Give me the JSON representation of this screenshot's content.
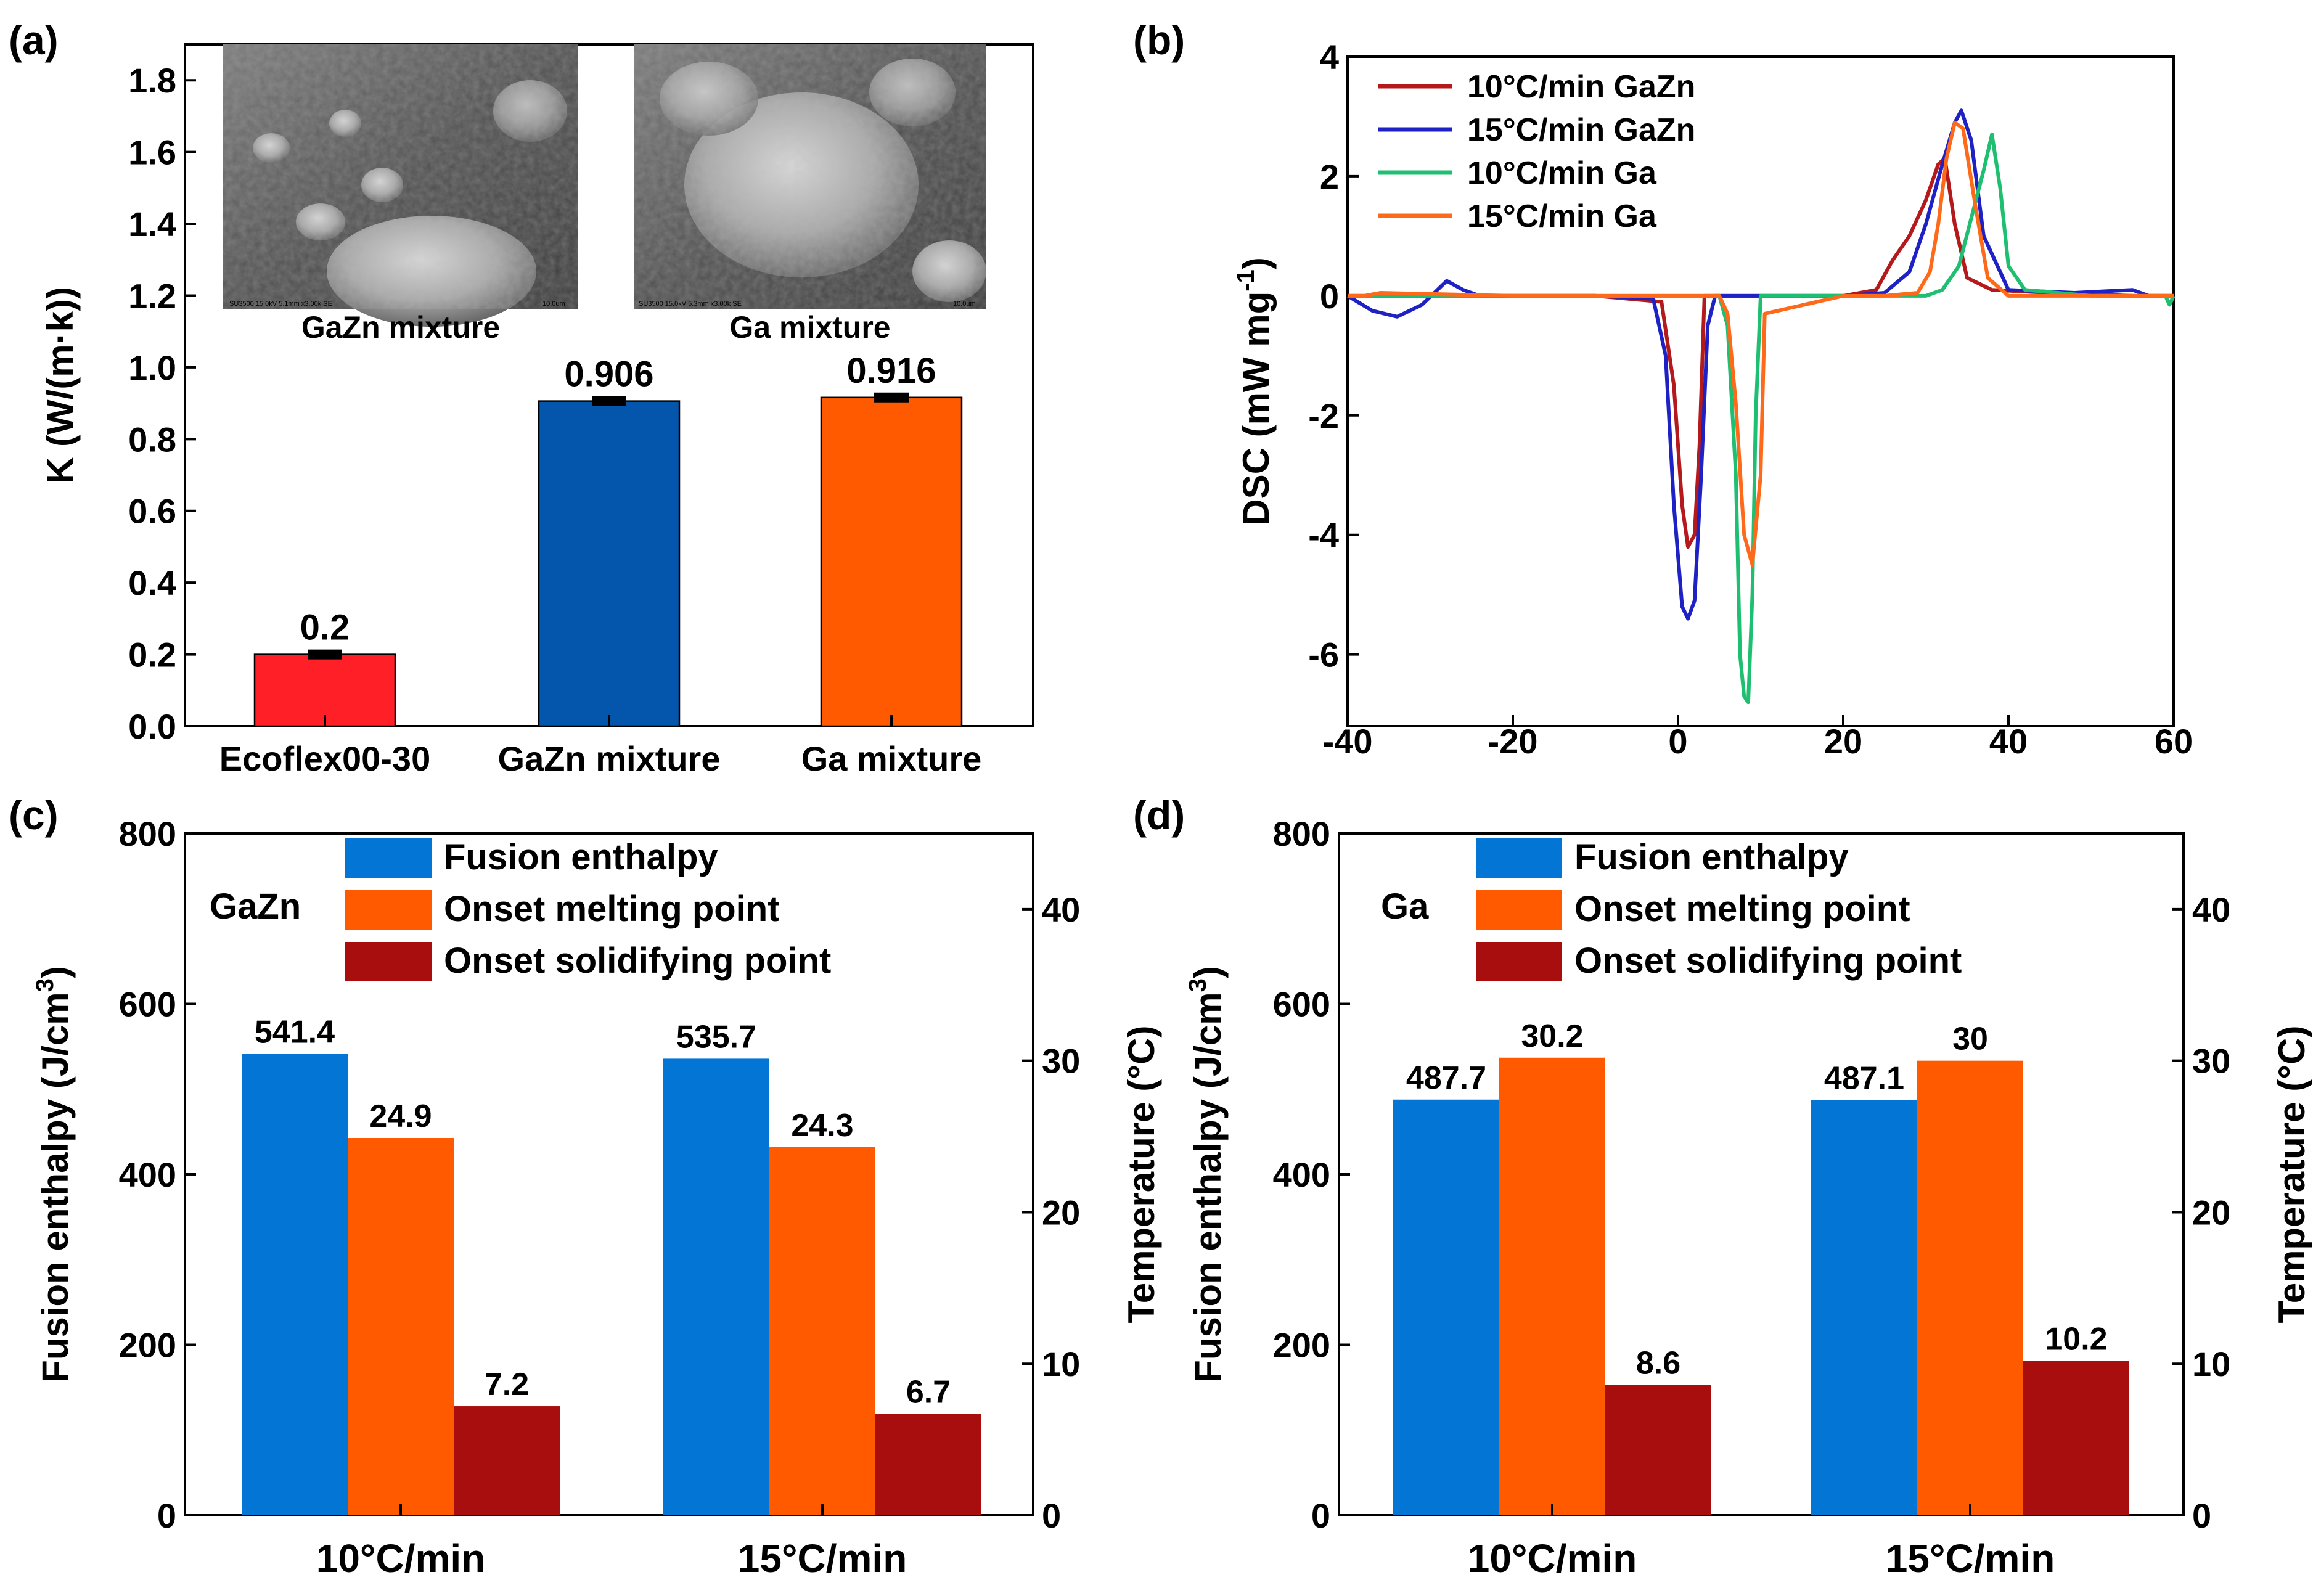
{
  "chart_data": [
    {
      "panel": "(a)",
      "type": "bar",
      "ylabel": "K (W/(m·k))",
      "ylim": [
        0,
        1.9
      ],
      "yticks": [
        "0.0",
        "0.2",
        "0.4",
        "0.6",
        "0.8",
        "1.0",
        "1.2",
        "1.4",
        "1.6",
        "1.8"
      ],
      "categories": [
        "Ecoflex00-30",
        "GaZn mixture",
        "Ga mixture"
      ],
      "values": [
        0.2,
        0.906,
        0.916
      ],
      "value_labels": [
        "0.2",
        "0.906",
        "0.916"
      ],
      "colors": [
        "#ff1f26",
        "#0456ad",
        "#ff5a00"
      ],
      "insets": [
        {
          "caption": "GaZn mixture",
          "scale": "10.0um",
          "meta": "SU3500 15.0kV 5.1mm x3.00k SE"
        },
        {
          "caption": "Ga mixture",
          "scale": "10.0um",
          "meta": "SU3500 15.0kV 5.3mm x3.00k SE"
        }
      ]
    },
    {
      "panel": "(b)",
      "type": "line",
      "ylabel": "DSC (mW mg",
      "ylabel_sup": "-1",
      "ylabel_end": ")",
      "xlim": [
        -40,
        60
      ],
      "ylim": [
        -7.2,
        4
      ],
      "xticks": [
        "-40",
        "-20",
        "0",
        "20",
        "40",
        "60"
      ],
      "yticks": [
        "-6",
        "-4",
        "-2",
        "0",
        "2",
        "4"
      ],
      "series": [
        {
          "name": "10°C/min GaZn",
          "color": "#b4191b",
          "x": [
            -40,
            -30,
            -10,
            -2,
            -0.5,
            0.5,
            1.2,
            2.0,
            2.6,
            3.2,
            5,
            10,
            20,
            24,
            26,
            28,
            30,
            31.5,
            32.3,
            33.5,
            35,
            38,
            45,
            55,
            60
          ],
          "y": [
            0,
            0,
            0,
            -0.1,
            -1.5,
            -3.5,
            -4.2,
            -4.0,
            -2.5,
            0,
            0,
            0,
            0,
            0.1,
            0.6,
            1.0,
            1.6,
            2.2,
            2.3,
            1.2,
            0.3,
            0.1,
            0.05,
            0,
            0
          ]
        },
        {
          "name": "15°C/min GaZn",
          "color": "#1e22c4",
          "x": [
            -40,
            -37,
            -34,
            -31,
            -28,
            -26,
            -24,
            -10,
            -3,
            -1.5,
            -0.5,
            0.5,
            1.2,
            2.0,
            2.8,
            3.6,
            4.5,
            10,
            20,
            25,
            28,
            30,
            32,
            33.5,
            34.3,
            35.5,
            37,
            40,
            48,
            55,
            57,
            60
          ],
          "y": [
            0,
            -0.25,
            -0.35,
            -0.15,
            0.25,
            0.1,
            0,
            0,
            -0.05,
            -1.0,
            -3.5,
            -5.2,
            -5.4,
            -5.1,
            -3.0,
            -0.5,
            0,
            0,
            0,
            0.05,
            0.4,
            1.2,
            2.2,
            2.9,
            3.1,
            2.6,
            1.0,
            0.1,
            0.05,
            0.1,
            0,
            0
          ]
        },
        {
          "name": "10°C/min Ga",
          "color": "#1fbf72",
          "x": [
            -40,
            -20,
            0,
            5,
            6,
            7,
            7.5,
            8,
            8.5,
            9,
            9.4,
            10,
            20,
            30,
            32,
            34,
            35.5,
            37,
            38,
            39,
            40,
            42,
            50,
            59,
            59.5,
            60
          ],
          "y": [
            0,
            0,
            0,
            0,
            -0.5,
            -3,
            -6,
            -6.7,
            -6.8,
            -5,
            -2,
            0,
            0,
            0,
            0.1,
            0.5,
            1.3,
            2.1,
            2.7,
            1.8,
            0.5,
            0.1,
            0,
            0,
            -0.15,
            0
          ]
        },
        {
          "name": "15°C/min Ga",
          "color": "#ff6a1a",
          "x": [
            -40,
            -38,
            -36,
            -20,
            0,
            5,
            6,
            7,
            8,
            9,
            10,
            10.5,
            20,
            25,
            29,
            30.5,
            31.5,
            32.5,
            33.5,
            34.5,
            36,
            37.5,
            40,
            50,
            60
          ],
          "y": [
            0,
            0,
            0.05,
            0,
            0,
            0,
            -0.3,
            -1.8,
            -4,
            -4.5,
            -3,
            -0.3,
            0,
            0,
            0.05,
            0.4,
            1.2,
            2.3,
            2.9,
            2.8,
            1.5,
            0.3,
            0,
            0,
            0
          ]
        }
      ]
    },
    {
      "panel": "(c)",
      "type": "bar",
      "annotation": "GaZn",
      "ylabel_left": "Fusion enthalpy (J/cm",
      "ylabel_left_sup": "3",
      "ylabel_left_end": ")",
      "ylabel_right": "Temperature (°C)",
      "ylim_left": [
        0,
        800
      ],
      "ylim_right": [
        0,
        45
      ],
      "yticks_left": [
        "0",
        "200",
        "400",
        "600",
        "800"
      ],
      "yticks_right": [
        "0",
        "10",
        "20",
        "30",
        "40"
      ],
      "categories": [
        "10°C/min",
        "15°C/min"
      ],
      "series": [
        {
          "name": "Fusion enthalpy",
          "axis": "left",
          "color": "#0275d5",
          "values": [
            541.4,
            535.7
          ],
          "labels": [
            "541.4",
            "535.7"
          ]
        },
        {
          "name": "Onset melting point",
          "axis": "right",
          "color": "#ff5a00",
          "values": [
            24.9,
            24.3
          ],
          "labels": [
            "24.9",
            "24.3"
          ]
        },
        {
          "name": "Onset solidifying point",
          "axis": "right",
          "color": "#a80e0e",
          "values": [
            7.2,
            6.7
          ],
          "labels": [
            "7.2",
            "6.7"
          ]
        }
      ]
    },
    {
      "panel": "(d)",
      "type": "bar",
      "annotation": "Ga",
      "ylabel_left": "Fusion enthalpy (J/cm",
      "ylabel_left_sup": "3",
      "ylabel_left_end": ")",
      "ylabel_right": "Temperature (°C)",
      "ylim_left": [
        0,
        800
      ],
      "ylim_right": [
        0,
        45
      ],
      "yticks_left": [
        "0",
        "200",
        "400",
        "600",
        "800"
      ],
      "yticks_right": [
        "0",
        "10",
        "20",
        "30",
        "40"
      ],
      "categories": [
        "10°C/min",
        "15°C/min"
      ],
      "series": [
        {
          "name": "Fusion enthalpy",
          "axis": "left",
          "color": "#0275d5",
          "values": [
            487.7,
            487.1
          ],
          "labels": [
            "487.7",
            "487.1"
          ]
        },
        {
          "name": "Onset melting point",
          "axis": "right",
          "color": "#ff5a00",
          "values": [
            30.2,
            30
          ],
          "labels": [
            "30.2",
            "30"
          ]
        },
        {
          "name": "Onset solidifying point",
          "axis": "right",
          "color": "#a80e0e",
          "values": [
            8.6,
            10.2
          ],
          "labels": [
            "8.6",
            "10.2"
          ]
        }
      ]
    }
  ]
}
